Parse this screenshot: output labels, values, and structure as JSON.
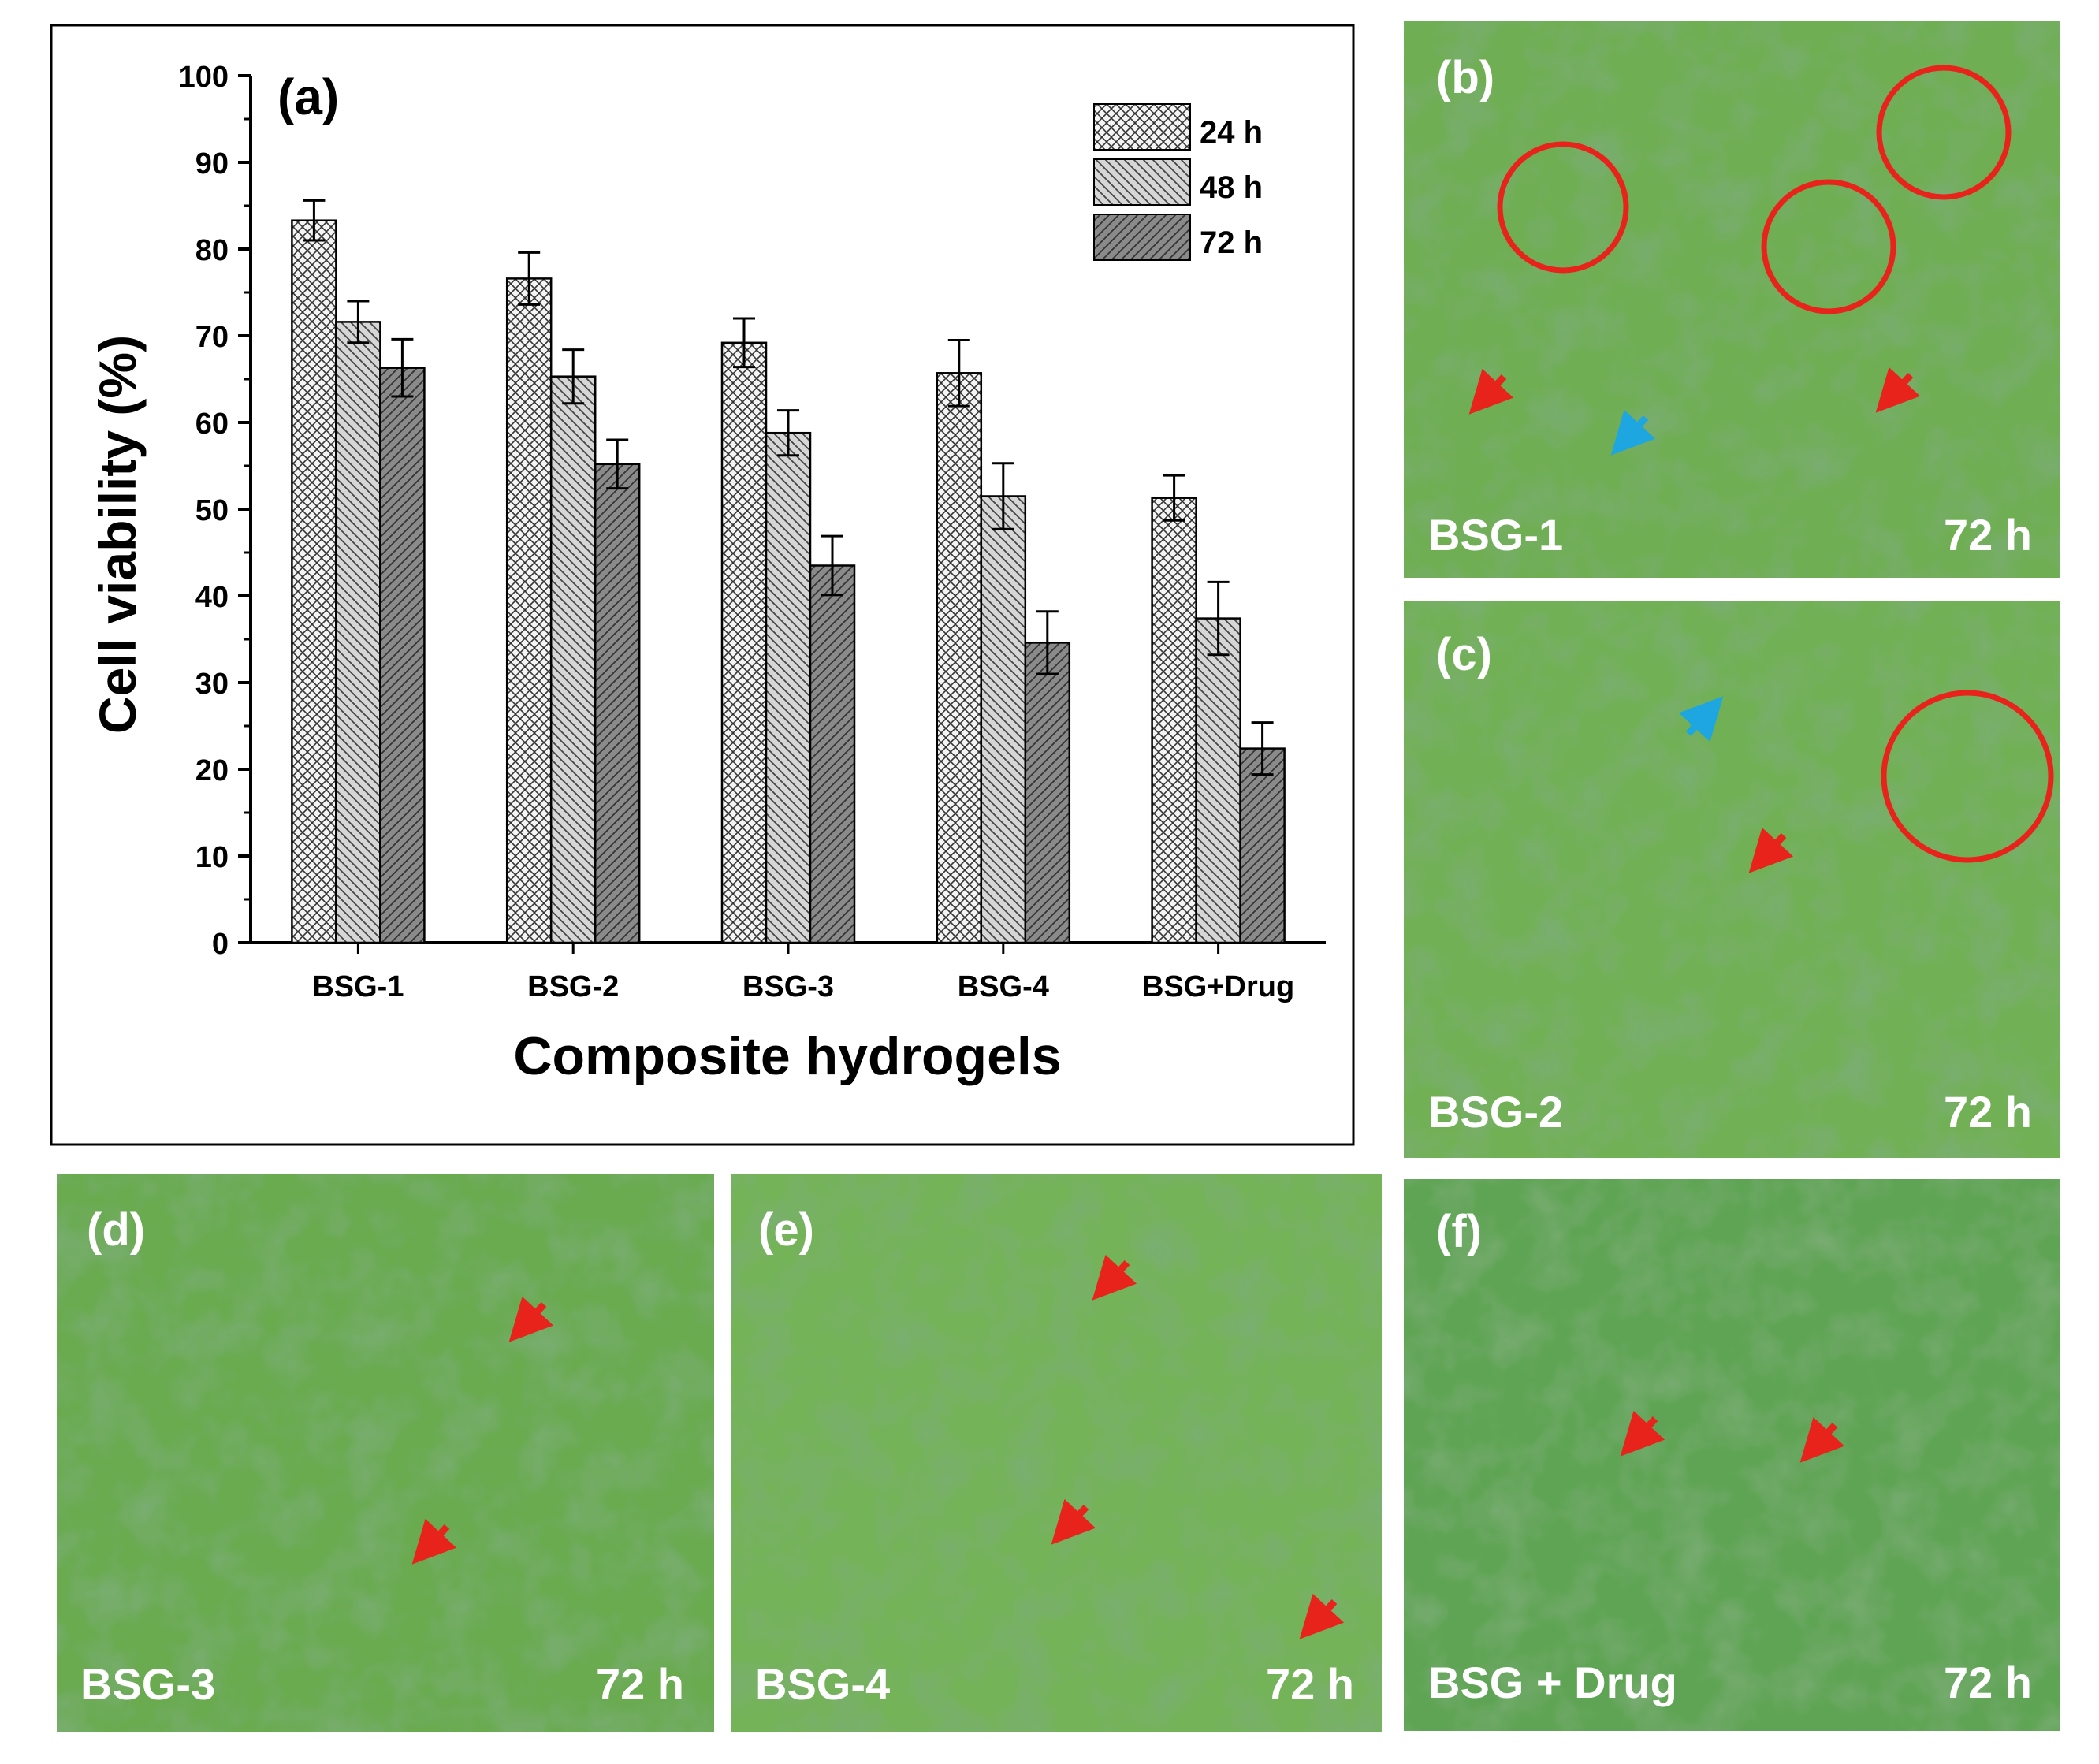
{
  "chart_data": {
    "type": "bar",
    "panel_label": "(a)",
    "xlabel": "Composite hydrogels",
    "ylabel": "Cell viability (%)",
    "ylim": [
      0,
      100
    ],
    "yticks": [
      "0",
      "10",
      "20",
      "30",
      "40",
      "50",
      "60",
      "70",
      "80",
      "90",
      "100"
    ],
    "categories": [
      "BSG-1",
      "BSG-2",
      "BSG-3",
      "BSG-4",
      "BSG+Drug"
    ],
    "legend_position": "top-right",
    "series": [
      {
        "name": "24 h",
        "values": [
          83.3,
          76.6,
          69.2,
          65.7,
          51.3
        ],
        "errors": [
          2.3,
          3.0,
          2.8,
          3.8,
          2.6
        ],
        "pattern": "crosshatch",
        "color": "#f4f4f4"
      },
      {
        "name": "48 h",
        "values": [
          71.6,
          65.3,
          58.8,
          51.5,
          37.4
        ],
        "errors": [
          2.4,
          3.1,
          2.6,
          3.8,
          4.2
        ],
        "pattern": "back-diagonal",
        "color": "#d6d6d6"
      },
      {
        "name": "72 h",
        "values": [
          66.3,
          55.2,
          43.5,
          34.6,
          22.4
        ],
        "errors": [
          3.3,
          2.8,
          3.4,
          3.6,
          3.0
        ],
        "pattern": "forward-diagonal",
        "color": "#8a8a8a"
      }
    ]
  },
  "micrographs": [
    {
      "label": "(b)",
      "sample": "BSG-1",
      "time": "72 h"
    },
    {
      "label": "(c)",
      "sample": "BSG-2",
      "time": "72 h"
    },
    {
      "label": "(d)",
      "sample": "BSG-3",
      "time": "72 h"
    },
    {
      "label": "(e)",
      "sample": "BSG-4",
      "time": "72 h"
    },
    {
      "label": "(f)",
      "sample": "BSG + Drug",
      "time": "72 h"
    }
  ],
  "colors": {
    "micrograph_base": "#6fae52",
    "micrograph_dark": "#3f7a35",
    "annotation_red": "#e8231c",
    "annotation_cyan": "#1ea6e0"
  }
}
